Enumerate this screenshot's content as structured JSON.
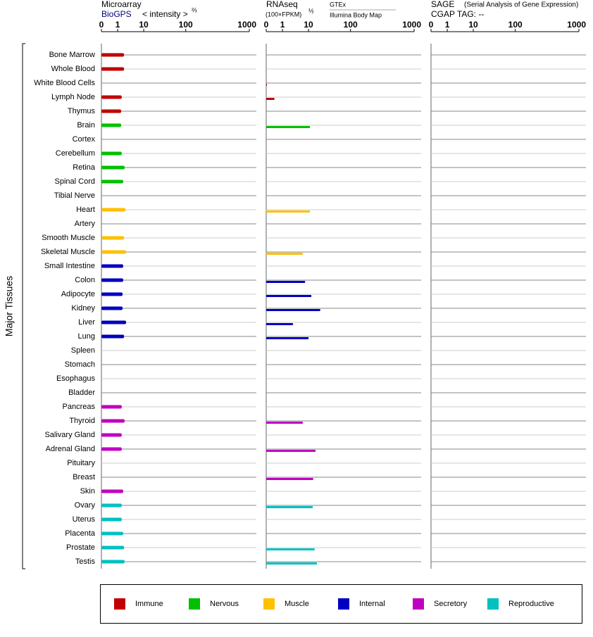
{
  "chart_data": {
    "type": "bar",
    "ylabel": "Major Tissues",
    "categories": [
      "Bone Marrow",
      "Whole Blood",
      "White Blood Cells",
      "Lymph Node",
      "Thymus",
      "Brain",
      "Cortex",
      "Cerebellum",
      "Retina",
      "Spinal Cord",
      "Tibial Nerve",
      "Heart",
      "Artery",
      "Smooth Muscle",
      "Skeletal Muscle",
      "Small Intestine",
      "Colon",
      "Adipocyte",
      "Kidney",
      "Liver",
      "Lung",
      "Spleen",
      "Stomach",
      "Esophagus",
      "Bladder",
      "Pancreas",
      "Thyroid",
      "Salivary Gland",
      "Adrenal Gland",
      "Pituitary",
      "Breast",
      "Skin",
      "Ovary",
      "Uterus",
      "Placenta",
      "Prostate",
      "Testis"
    ],
    "category_group": [
      0,
      0,
      0,
      0,
      0,
      1,
      1,
      1,
      1,
      1,
      1,
      2,
      2,
      2,
      2,
      3,
      3,
      3,
      3,
      3,
      3,
      3,
      3,
      3,
      3,
      4,
      4,
      4,
      4,
      4,
      4,
      4,
      5,
      5,
      5,
      5,
      5
    ],
    "groups": [
      {
        "name": "Immune",
        "color": "#c00000"
      },
      {
        "name": "Nervous",
        "color": "#00c000"
      },
      {
        "name": "Muscle",
        "color": "#ffc000"
      },
      {
        "name": "Internal",
        "color": "#0000c0"
      },
      {
        "name": "Secretory",
        "color": "#c000c0"
      },
      {
        "name": "Reproductive",
        "color": "#00c0c0"
      }
    ],
    "panels": [
      {
        "title": "Microarray",
        "source": "BioGPS",
        "unit": "< intensity >",
        "unit_power": "⅔",
        "xlim": [
          0,
          1000
        ],
        "xticks": [
          0,
          1,
          10,
          100,
          1000
        ],
        "values": [
          3.2,
          3.2,
          null,
          2.4,
          2.2,
          2.2,
          null,
          2.4,
          3.4,
          2.9,
          null,
          3.7,
          null,
          3.2,
          3.9,
          2.9,
          2.9,
          2.7,
          2.7,
          3.9,
          3.2,
          null,
          null,
          null,
          null,
          2.4,
          3.4,
          2.4,
          2.4,
          null,
          null,
          2.9,
          2.4,
          2.4,
          2.9,
          3.2,
          3.4
        ]
      },
      {
        "title": "RNAseq",
        "unit": "(100×FPKM)",
        "unit_power": "½",
        "source": "GTEx",
        "source2": "Illumina Body Map",
        "xlim": [
          0,
          1000
        ],
        "xticks": [
          0,
          1,
          10,
          100,
          1000
        ],
        "values": [
          null,
          null,
          0.04,
          0.5,
          null,
          13,
          null,
          null,
          null,
          null,
          null,
          13,
          null,
          null,
          8,
          null,
          8.8,
          16,
          35,
          4.6,
          10,
          null,
          null,
          null,
          null,
          null,
          8,
          null,
          25,
          null,
          20,
          null,
          19,
          null,
          null,
          23,
          28
        ]
      },
      {
        "title": "SAGE",
        "source": "(Serial Analysis of Gene Expression)",
        "unit": "CGAP TAG:  --",
        "xlim": [
          0,
          1000
        ],
        "xticks": [
          0,
          1,
          10,
          100,
          1000
        ],
        "values": [
          null,
          null,
          null,
          null,
          null,
          null,
          null,
          null,
          null,
          null,
          null,
          null,
          null,
          null,
          null,
          null,
          null,
          null,
          null,
          null,
          null,
          null,
          null,
          null,
          null,
          null,
          null,
          null,
          null,
          null,
          null,
          null,
          null,
          null,
          null,
          null,
          null
        ]
      }
    ]
  }
}
